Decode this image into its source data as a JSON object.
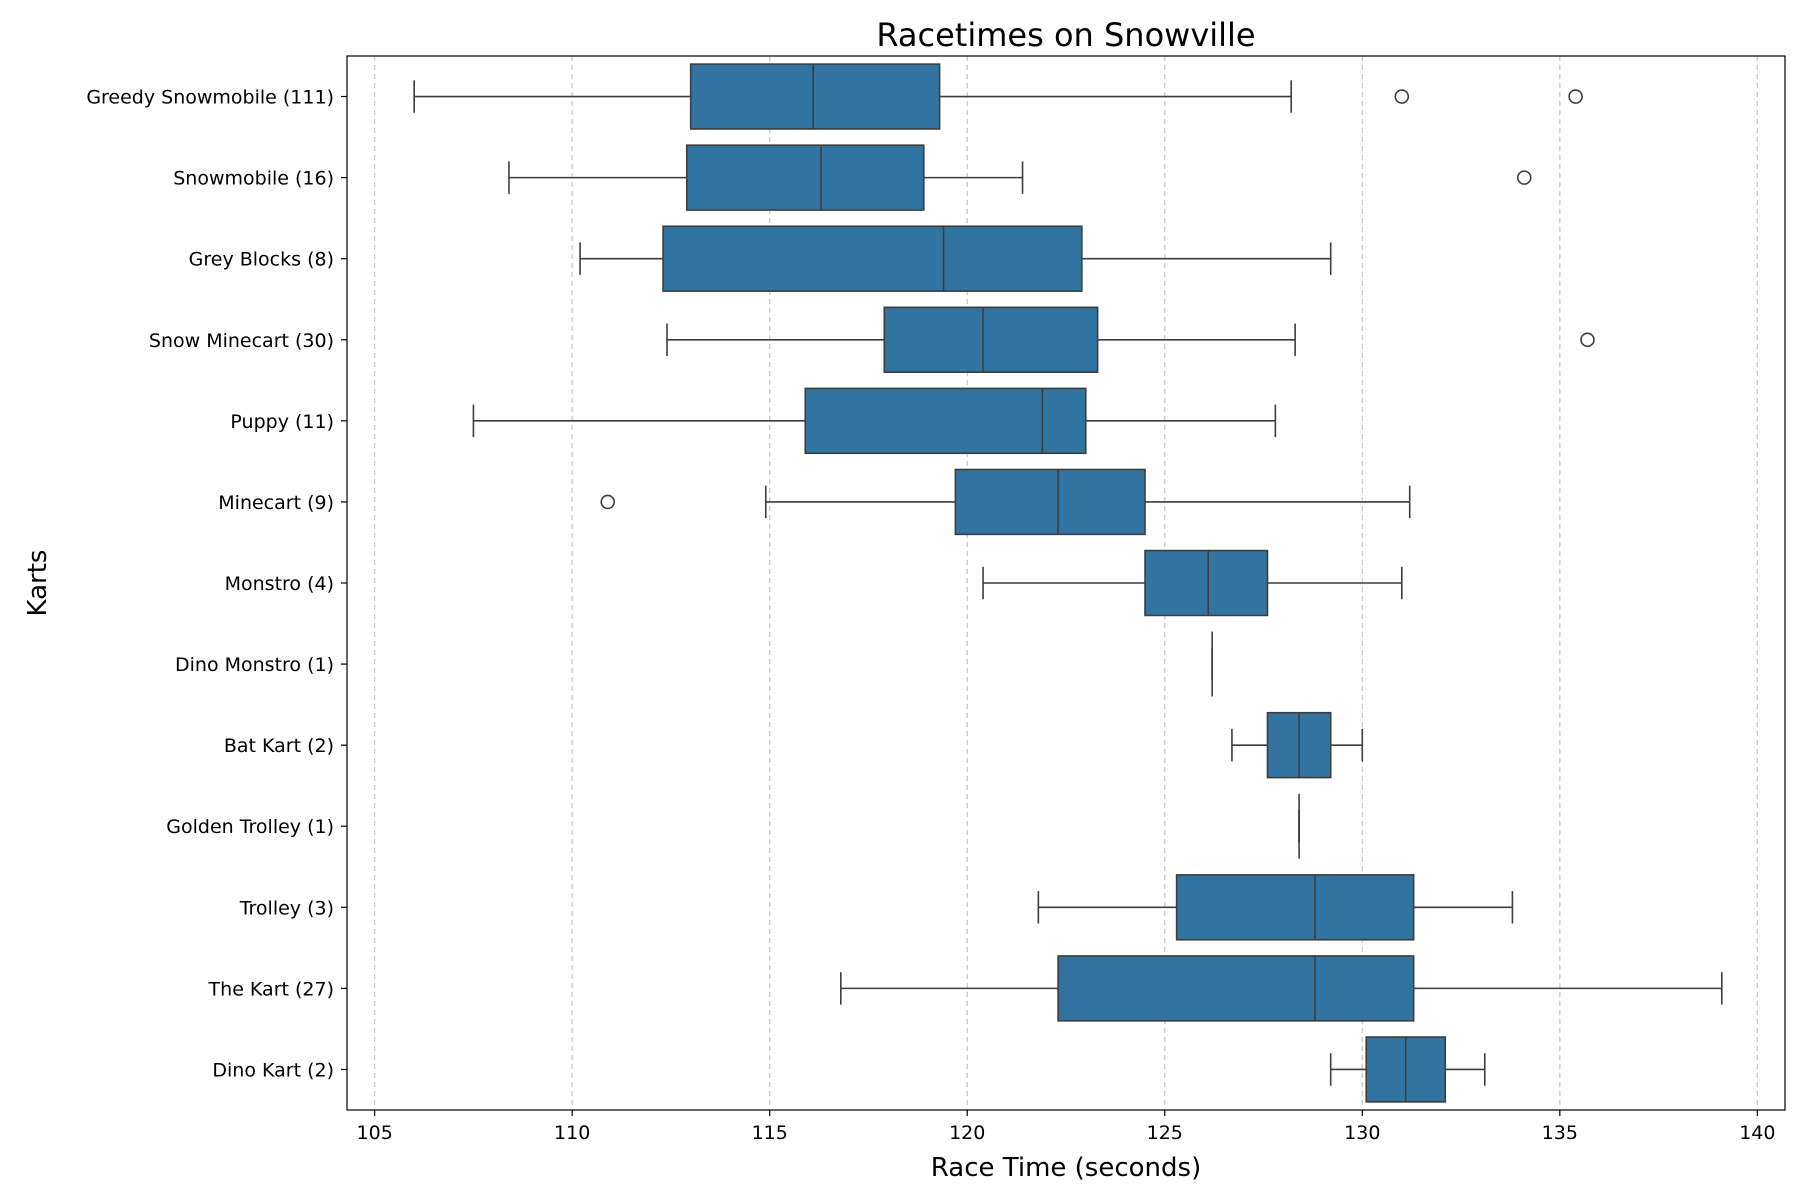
{
  "chart_data": {
    "type": "boxplot",
    "orientation": "horizontal",
    "title": "Racetimes on Snowville",
    "xlabel": "Race Time (seconds)",
    "ylabel": "Karts",
    "xlim": [
      104.3,
      140.7
    ],
    "xticks": [
      105,
      110,
      115,
      120,
      125,
      130,
      135,
      140
    ],
    "grid": "x-dashed",
    "box_color": "#3274a1",
    "line_color": "#3d3d3d",
    "grid_color": "#c8c8c8",
    "categories": [
      {
        "label": "Greedy Snowmobile (111)",
        "whisker_low": 106.0,
        "q1": 113.0,
        "median": 116.1,
        "q3": 119.3,
        "whisker_high": 128.2,
        "outliers": [
          131.0,
          135.4
        ]
      },
      {
        "label": "Snowmobile (16)",
        "whisker_low": 108.4,
        "q1": 112.9,
        "median": 116.3,
        "q3": 118.9,
        "whisker_high": 121.4,
        "outliers": [
          134.1
        ]
      },
      {
        "label": "Grey Blocks (8)",
        "whisker_low": 110.2,
        "q1": 112.3,
        "median": 119.4,
        "q3": 122.9,
        "whisker_high": 129.2,
        "outliers": []
      },
      {
        "label": "Snow Minecart (30)",
        "whisker_low": 112.4,
        "q1": 117.9,
        "median": 120.4,
        "q3": 123.3,
        "whisker_high": 128.3,
        "outliers": [
          135.7
        ]
      },
      {
        "label": "Puppy (11)",
        "whisker_low": 107.5,
        "q1": 115.9,
        "median": 121.9,
        "q3": 123.0,
        "whisker_high": 127.8,
        "outliers": []
      },
      {
        "label": "Minecart (9)",
        "whisker_low": 114.9,
        "q1": 119.7,
        "median": 122.3,
        "q3": 124.5,
        "whisker_high": 131.2,
        "outliers": [
          110.9
        ]
      },
      {
        "label": "Monstro (4)",
        "whisker_low": 120.4,
        "q1": 124.5,
        "median": 126.1,
        "q3": 127.6,
        "whisker_high": 131.0,
        "outliers": []
      },
      {
        "label": "Dino Monstro (1)",
        "whisker_low": 126.2,
        "q1": 126.2,
        "median": 126.2,
        "q3": 126.2,
        "whisker_high": 126.2,
        "outliers": []
      },
      {
        "label": "Bat Kart (2)",
        "whisker_low": 126.7,
        "q1": 127.6,
        "median": 128.4,
        "q3": 129.2,
        "whisker_high": 130.0,
        "outliers": []
      },
      {
        "label": "Golden Trolley (1)",
        "whisker_low": 128.4,
        "q1": 128.4,
        "median": 128.4,
        "q3": 128.4,
        "whisker_high": 128.4,
        "outliers": []
      },
      {
        "label": "Trolley (3)",
        "whisker_low": 121.8,
        "q1": 125.3,
        "median": 128.8,
        "q3": 131.3,
        "whisker_high": 133.8,
        "outliers": []
      },
      {
        "label": "The Kart (27)",
        "whisker_low": 116.8,
        "q1": 122.3,
        "median": 128.8,
        "q3": 131.3,
        "whisker_high": 139.1,
        "outliers": []
      },
      {
        "label": "Dino Kart (2)",
        "whisker_low": 129.2,
        "q1": 130.1,
        "median": 131.1,
        "q3": 132.1,
        "whisker_high": 133.1,
        "outliers": []
      }
    ]
  }
}
